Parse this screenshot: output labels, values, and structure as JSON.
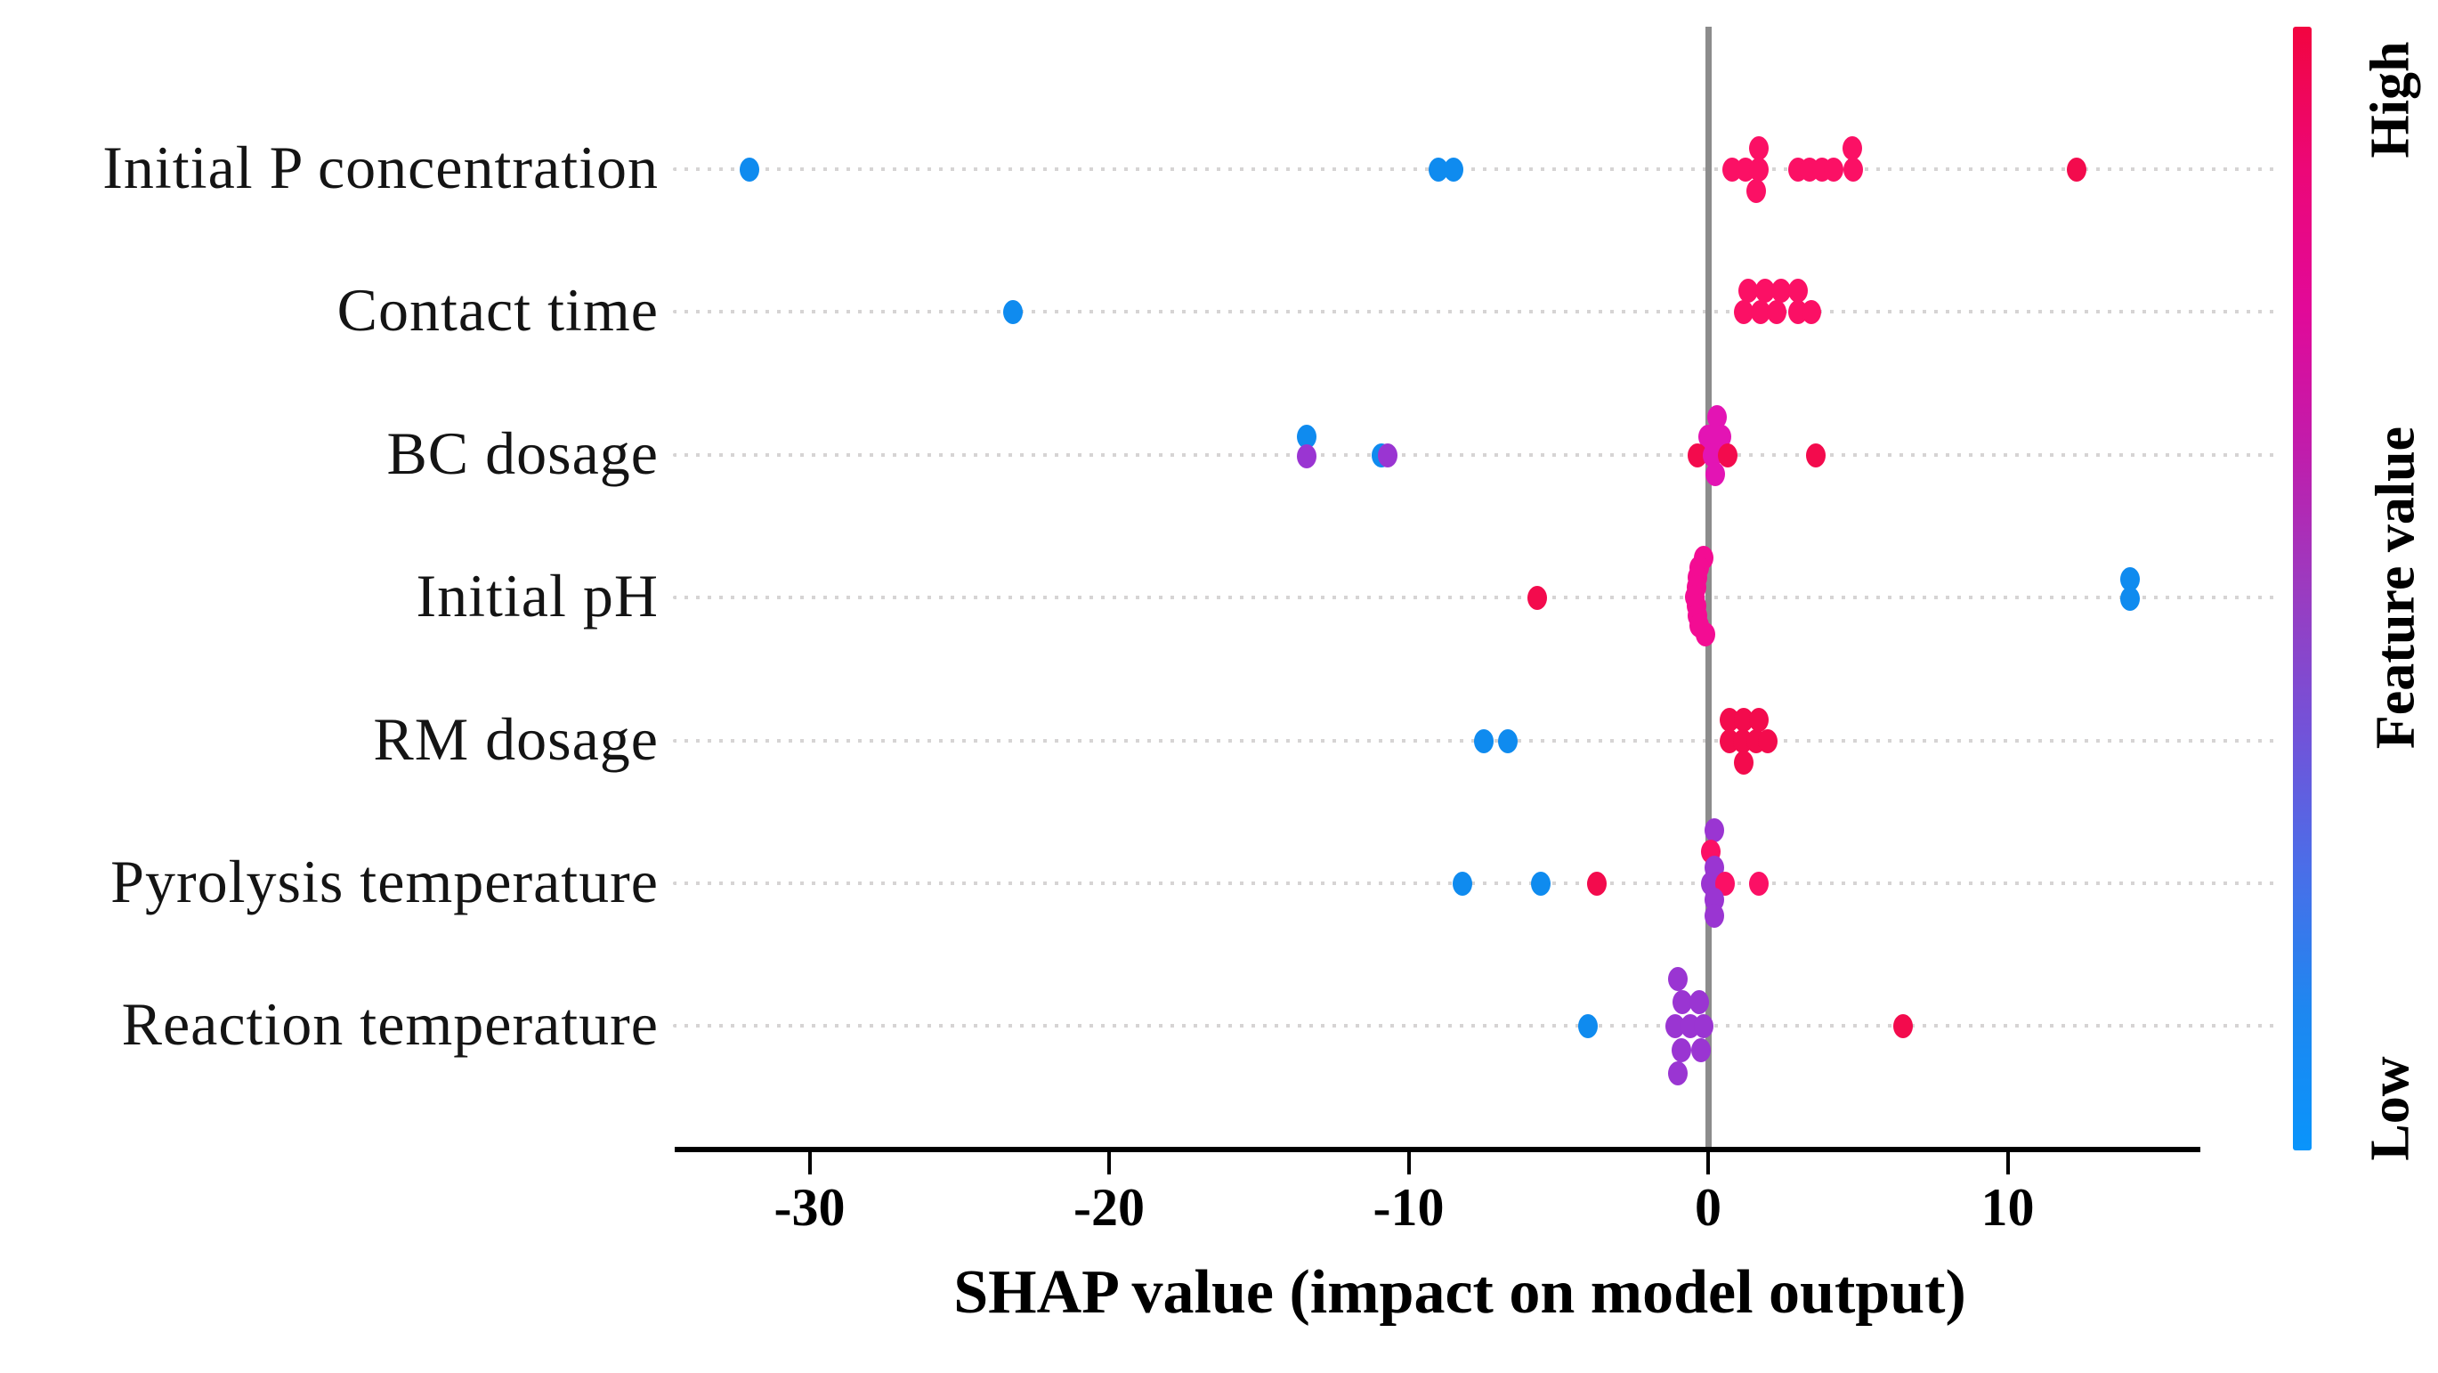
{
  "chart_data": {
    "type": "scatter",
    "subtype": "shap-beeswarm",
    "title": "",
    "xlabel": "SHAP value (impact on model output)",
    "ylabel": "",
    "x_ticks": [
      -30,
      -20,
      -10,
      0,
      10
    ],
    "x_range": [
      -34.5,
      16.4
    ],
    "grid": "dotted horizontal guide per feature row",
    "features": [
      "Initial P concentration",
      "Contact time",
      "BC dosage",
      "Initial pH",
      "RM dosage",
      "Pyrolysis temperature",
      "Reaction temperature"
    ],
    "palette": {
      "blue": "#0f8bef",
      "purple": "#9a35d2",
      "magenta": "#e314b4",
      "deeppink": "#f30c93",
      "rose": "#fb1065",
      "red": "#f30b4d"
    },
    "colorbar": {
      "label": "Feature value",
      "high_label": "High",
      "low_label": "Low",
      "gradient_top_to_bottom": [
        "#f20540",
        "#ec0777",
        "#e20998",
        "#c11cab",
        "#9b3bc0",
        "#7352d8",
        "#4a6ee8",
        "#1e87f0",
        "#0994fb"
      ]
    },
    "series": [
      {
        "feature": "Initial P concentration",
        "points": [
          [
            -32.0,
            0,
            "blue"
          ],
          [
            -9.0,
            0,
            "blue"
          ],
          [
            -8.5,
            0,
            "blue"
          ],
          [
            0.8,
            0,
            "rose"
          ],
          [
            1.25,
            0,
            "rose"
          ],
          [
            1.7,
            0,
            "rose"
          ],
          [
            1.7,
            -24,
            "rose"
          ],
          [
            1.6,
            24,
            "rose"
          ],
          [
            3.0,
            0,
            "rose"
          ],
          [
            3.4,
            0,
            "rose"
          ],
          [
            3.8,
            0,
            "rose"
          ],
          [
            4.2,
            0,
            "rose"
          ],
          [
            4.85,
            0,
            "rose"
          ],
          [
            4.8,
            -24,
            "rose"
          ],
          [
            12.3,
            0,
            "red"
          ]
        ]
      },
      {
        "feature": "Contact time",
        "points": [
          [
            -23.2,
            0,
            "blue"
          ],
          [
            1.35,
            -24,
            "rose"
          ],
          [
            1.9,
            -24,
            "rose"
          ],
          [
            2.45,
            -24,
            "rose"
          ],
          [
            3.0,
            -24,
            "rose"
          ],
          [
            1.2,
            0,
            "rose"
          ],
          [
            1.75,
            0,
            "rose"
          ],
          [
            2.3,
            0,
            "rose"
          ],
          [
            3.0,
            0,
            "rose"
          ],
          [
            3.45,
            0,
            "rose"
          ]
        ]
      },
      {
        "feature": "BC dosage",
        "points": [
          [
            -13.4,
            -21,
            "blue"
          ],
          [
            -13.4,
            1,
            "purple"
          ],
          [
            -10.9,
            0,
            "blue"
          ],
          [
            -10.7,
            0,
            "purple"
          ],
          [
            0.3,
            -43,
            "magenta"
          ],
          [
            0.0,
            -21,
            "magenta"
          ],
          [
            0.45,
            -21,
            "magenta"
          ],
          [
            -0.35,
            0,
            "red"
          ],
          [
            0.15,
            0,
            "magenta"
          ],
          [
            0.65,
            0,
            "red"
          ],
          [
            0.25,
            21,
            "magenta"
          ],
          [
            3.6,
            0,
            "red"
          ]
        ]
      },
      {
        "feature": "Initial pH",
        "points": [
          [
            -5.7,
            0,
            "red"
          ],
          [
            -0.15,
            -45,
            "deeppink"
          ],
          [
            -0.3,
            -34,
            "deeppink"
          ],
          [
            -0.35,
            -23,
            "deeppink"
          ],
          [
            -0.4,
            -12,
            "deeppink"
          ],
          [
            -0.45,
            -1,
            "deeppink"
          ],
          [
            -0.4,
            9,
            "deeppink"
          ],
          [
            -0.35,
            20,
            "deeppink"
          ],
          [
            -0.3,
            31,
            "deeppink"
          ],
          [
            -0.1,
            41,
            "deeppink"
          ],
          [
            14.1,
            -21,
            "blue"
          ],
          [
            14.1,
            1,
            "blue"
          ]
        ]
      },
      {
        "feature": "RM dosage",
        "points": [
          [
            -7.5,
            0,
            "blue"
          ],
          [
            -6.7,
            0,
            "blue"
          ],
          [
            0.7,
            -24,
            "red"
          ],
          [
            1.2,
            -24,
            "red"
          ],
          [
            1.7,
            -24,
            "red"
          ],
          [
            0.7,
            0,
            "red"
          ],
          [
            1.15,
            0,
            "red"
          ],
          [
            1.6,
            0,
            "red"
          ],
          [
            2.0,
            0,
            "red"
          ],
          [
            1.2,
            24,
            "red"
          ]
        ]
      },
      {
        "feature": "Pyrolysis temperature",
        "points": [
          [
            -8.2,
            0,
            "blue"
          ],
          [
            -5.6,
            0,
            "blue"
          ],
          [
            -3.7,
            0,
            "red"
          ],
          [
            0.2,
            -60,
            "purple"
          ],
          [
            0.1,
            -36,
            "rose"
          ],
          [
            0.2,
            -18,
            "purple"
          ],
          [
            0.1,
            0,
            "purple"
          ],
          [
            0.55,
            0,
            "rose"
          ],
          [
            0.2,
            18,
            "purple"
          ],
          [
            0.2,
            36,
            "purple"
          ],
          [
            1.7,
            0,
            "rose"
          ]
        ]
      },
      {
        "feature": "Reaction temperature",
        "points": [
          [
            -4.0,
            0,
            "blue"
          ],
          [
            -1.0,
            -53,
            "purple"
          ],
          [
            -0.85,
            -27,
            "purple"
          ],
          [
            -0.3,
            -27,
            "purple"
          ],
          [
            -1.1,
            0,
            "purple"
          ],
          [
            -0.6,
            0,
            "purple"
          ],
          [
            -0.15,
            0,
            "purple"
          ],
          [
            -0.9,
            27,
            "purple"
          ],
          [
            -0.25,
            27,
            "purple"
          ],
          [
            -1.0,
            53,
            "purple"
          ],
          [
            6.5,
            0,
            "red"
          ]
        ]
      }
    ]
  }
}
